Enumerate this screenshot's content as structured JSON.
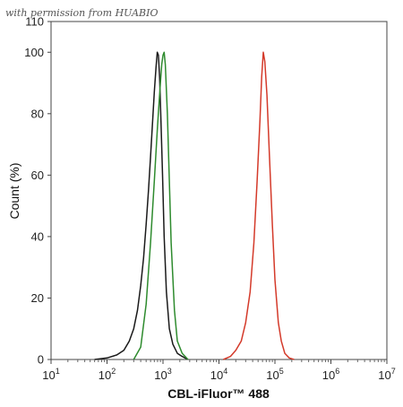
{
  "watermark": "with permission from HUABIO",
  "chart_data": {
    "type": "line",
    "title": "",
    "xlabel": "CBL-iFluor™ 488",
    "ylabel": "Count (%)",
    "xscale": "log",
    "xlim": [
      10,
      10000000
    ],
    "ylim": [
      0,
      110
    ],
    "x_ticks": [
      {
        "base": "10",
        "exp": "1"
      },
      {
        "base": "10",
        "exp": "2"
      },
      {
        "base": "10",
        "exp": "3"
      },
      {
        "base": "10",
        "exp": "4"
      },
      {
        "base": "10",
        "exp": "5"
      },
      {
        "base": "10",
        "exp": "6"
      },
      {
        "base": "10",
        "exp": "7"
      }
    ],
    "y_ticks": [
      "0",
      "20",
      "40",
      "60",
      "80",
      "100",
      "110"
    ],
    "y_tick_values": [
      0,
      20,
      40,
      60,
      80,
      100,
      110
    ],
    "grid": false,
    "legend": "none",
    "series": [
      {
        "color": "#1a1a1a",
        "x": [
          60,
          100,
          150,
          200,
          250,
          300,
          350,
          400,
          450,
          500,
          550,
          600,
          650,
          700,
          750,
          790,
          830,
          870,
          920,
          980,
          1050,
          1150,
          1300,
          1500,
          1800,
          2200,
          2800
        ],
        "y": [
          0,
          0.5,
          1.5,
          3,
          6,
          10,
          16,
          24,
          33,
          44,
          55,
          66,
          77,
          87,
          95,
          100,
          99,
          92,
          78,
          60,
          40,
          22,
          10,
          5,
          2,
          1,
          0
        ]
      },
      {
        "color": "#2e8b2e",
        "x": [
          300,
          400,
          500,
          600,
          700,
          800,
          900,
          950,
          1000,
          1050,
          1100,
          1200,
          1300,
          1400,
          1600,
          1800,
          2200,
          2800
        ],
        "y": [
          0,
          4,
          18,
          38,
          58,
          76,
          90,
          96,
          99,
          100,
          96,
          80,
          58,
          38,
          16,
          6,
          2,
          0
        ]
      },
      {
        "color": "#d43a2a",
        "x": [
          12000,
          16000,
          20000,
          25000,
          30000,
          36000,
          42000,
          48000,
          54000,
          58000,
          62000,
          66000,
          72000,
          80000,
          90000,
          100000,
          115000,
          130000,
          150000,
          180000,
          220000
        ],
        "y": [
          0,
          1,
          3,
          6,
          12,
          22,
          38,
          58,
          78,
          92,
          100,
          97,
          86,
          66,
          44,
          26,
          12,
          6,
          2,
          0.5,
          0
        ]
      }
    ]
  }
}
